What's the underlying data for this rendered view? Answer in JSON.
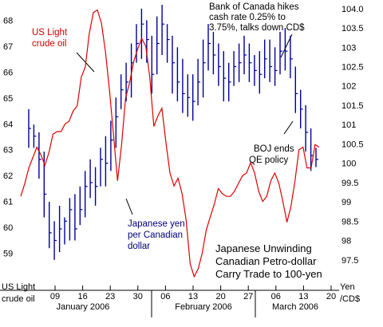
{
  "chart_data": {
    "type": "line",
    "title_lines": [
      "Japanese Unwinding",
      "Canadian Petro-dollar",
      "Carry Trade to 100-yen"
    ],
    "left_axis": {
      "label_lines": [
        "US Light",
        "crude oil"
      ],
      "ticks": [
        "59",
        "60",
        "61",
        "62",
        "63",
        "64",
        "65",
        "66",
        "67",
        "68"
      ],
      "ylim": [
        58.0,
        68.6
      ]
    },
    "right_axis": {
      "label_lines": [
        "Yen",
        "/CD$"
      ],
      "ticks": [
        "97.5",
        "98",
        "98.5",
        "99",
        "99.5",
        "100",
        "100.5",
        "101",
        "101.5",
        "102",
        "102.5",
        "103",
        "103.5",
        "104.0"
      ],
      "ylim": [
        97.0,
        104.1
      ]
    },
    "x_ticks": [
      "09",
      "16",
      "23",
      "30",
      "06",
      "13",
      "20",
      "27",
      "06",
      "13",
      "20"
    ],
    "months": [
      "January 2006",
      "February 2006",
      "March 2006"
    ],
    "series": [
      {
        "name": "US Light crude oil",
        "axis": "left",
        "color": "#dd0000",
        "values": [
          61.2,
          61.7,
          62.3,
          62.7,
          63.1,
          62.8,
          62.4,
          62.9,
          63.6,
          63.7,
          63.7,
          64.0,
          64.1,
          64.5,
          64.7,
          65.8,
          66.2,
          67.5,
          68.3,
          68.4,
          67.9,
          66.8,
          65.3,
          63.6,
          61.8,
          63.2,
          65.0,
          65.6,
          66.4,
          66.9,
          67.3,
          67.0,
          65.8,
          63.9,
          64.3,
          64.6,
          63.3,
          62.1,
          61.6,
          61.9,
          61.3,
          60.3,
          58.6,
          58.1,
          58.4,
          59.0,
          59.9,
          60.4,
          60.9,
          61.5,
          61.3,
          61.2,
          61.2,
          61.4,
          61.7,
          62.0,
          62.1,
          62.5,
          62.1,
          61.4,
          61.0,
          61.2,
          61.8,
          62.1,
          61.7,
          61.0,
          60.2,
          60.8,
          61.8,
          63.0,
          63.1,
          62.3,
          62.3,
          63.2,
          63.1
        ]
      },
      {
        "name": "Japanese yen per Canadian dollar",
        "axis": "right",
        "color": "#000099",
        "ohlc": [
          [
            101.4,
            100.4,
            100.9
          ],
          [
            101.0,
            100.4,
            100.7
          ],
          [
            100.8,
            99.6,
            100.1
          ],
          [
            100.3,
            98.6,
            99.2
          ],
          [
            99.0,
            97.8,
            98.2
          ],
          [
            98.5,
            97.5,
            98.0
          ],
          [
            98.9,
            97.7,
            98.3
          ],
          [
            98.6,
            97.9,
            98.5
          ],
          [
            99.1,
            98.0,
            98.8
          ],
          [
            99.2,
            98.0,
            98.3
          ],
          [
            99.4,
            98.4,
            98.8
          ],
          [
            99.8,
            98.6,
            99.4
          ],
          [
            100.1,
            99.1,
            99.5
          ],
          [
            99.9,
            98.9,
            99.4
          ],
          [
            100.4,
            99.4,
            100.1
          ],
          [
            100.7,
            99.4,
            100.0
          ],
          [
            101.1,
            99.8,
            100.6
          ],
          [
            101.7,
            100.4,
            101.2
          ],
          [
            102.3,
            101.4,
            101.9
          ],
          [
            102.6,
            101.6,
            102.1
          ],
          [
            103.1,
            101.7,
            102.6
          ],
          [
            103.6,
            102.6,
            103.1
          ],
          [
            104.0,
            102.7,
            103.6
          ],
          [
            103.7,
            102.6,
            103.2
          ],
          [
            103.3,
            101.8,
            102.3
          ],
          [
            103.8,
            102.3,
            103.1
          ],
          [
            104.1,
            102.8,
            103.6
          ],
          [
            103.6,
            102.6,
            103.2
          ],
          [
            103.3,
            101.8,
            102.6
          ],
          [
            103.0,
            101.6,
            102.1
          ],
          [
            102.7,
            101.3,
            101.8
          ],
          [
            102.3,
            101.2,
            101.7
          ],
          [
            102.3,
            101.1,
            101.6
          ],
          [
            102.7,
            101.5,
            102.1
          ],
          [
            103.2,
            101.7,
            102.6
          ],
          [
            103.6,
            102.4,
            103.1
          ],
          [
            103.4,
            102.3,
            102.8
          ],
          [
            103.1,
            102.0,
            102.5
          ],
          [
            102.9,
            101.6,
            102.2
          ],
          [
            102.6,
            101.6,
            102.1
          ],
          [
            102.9,
            102.0,
            102.5
          ],
          [
            103.1,
            102.1,
            102.6
          ],
          [
            103.3,
            102.3,
            102.8
          ],
          [
            103.1,
            102.1,
            102.6
          ],
          [
            102.8,
            102.0,
            102.4
          ],
          [
            102.9,
            101.8,
            102.3
          ],
          [
            103.2,
            102.2,
            102.7
          ],
          [
            103.2,
            102.1,
            102.5
          ],
          [
            103.0,
            102.0,
            102.4
          ],
          [
            103.4,
            102.3,
            102.9
          ],
          [
            103.5,
            102.4,
            102.9
          ],
          [
            103.3,
            102.2,
            102.7
          ],
          [
            102.5,
            101.3,
            101.8
          ],
          [
            101.9,
            100.9,
            101.4
          ],
          [
            101.5,
            100.3,
            100.8
          ],
          [
            100.9,
            99.8,
            100.2
          ],
          [
            100.4,
            99.9,
            100.1
          ]
        ]
      }
    ],
    "annotations": {
      "bank_of_canada": [
        "Bank of Canada hikes",
        "cash rate 0.25% to",
        "3.75%, talks down CD$"
      ],
      "boj": [
        "BOJ ends",
        "QE policy"
      ],
      "oil_label": [
        "US Light",
        "crude oil"
      ],
      "yen_label": [
        "Japanese yen",
        "per Canadian",
        "dollar"
      ]
    },
    "grid": false,
    "legend": "none"
  }
}
